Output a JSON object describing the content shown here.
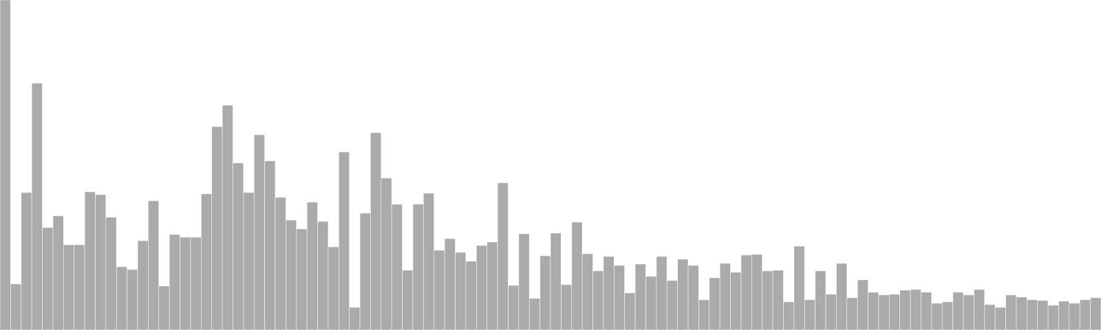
{
  "chart_data": {
    "type": "bar",
    "title": "",
    "xlabel": "",
    "ylabel": "",
    "ylim": [
      0,
      480
    ],
    "grid": false,
    "legend": "none",
    "bar_color": "#aaaaaa",
    "bar_edge_color": "#ffffff",
    "values": [
      480,
      67,
      200,
      359,
      149,
      166,
      124,
      124,
      201,
      197,
      164,
      92,
      88,
      130,
      188,
      64,
      139,
      135,
      135,
      198,
      296,
      327,
      243,
      200,
      284,
      246,
      193,
      160,
      147,
      186,
      158,
      121,
      259,
      33,
      170,
      287,
      221,
      183,
      87,
      183,
      199,
      116,
      133,
      113,
      100,
      123,
      128,
      214,
      65,
      140,
      46,
      108,
      141,
      66,
      157,
      111,
      86,
      107,
      94,
      54,
      96,
      78,
      107,
      72,
      103,
      94,
      44,
      76,
      97,
      84,
      109,
      110,
      86,
      87,
      41,
      122,
      44,
      86,
      52,
      97,
      47,
      73,
      55,
      51,
      52,
      58,
      59,
      55,
      39,
      41,
      55,
      51,
      59,
      37,
      33,
      51,
      48,
      44,
      43,
      36,
      42,
      39,
      44,
      47
    ]
  }
}
